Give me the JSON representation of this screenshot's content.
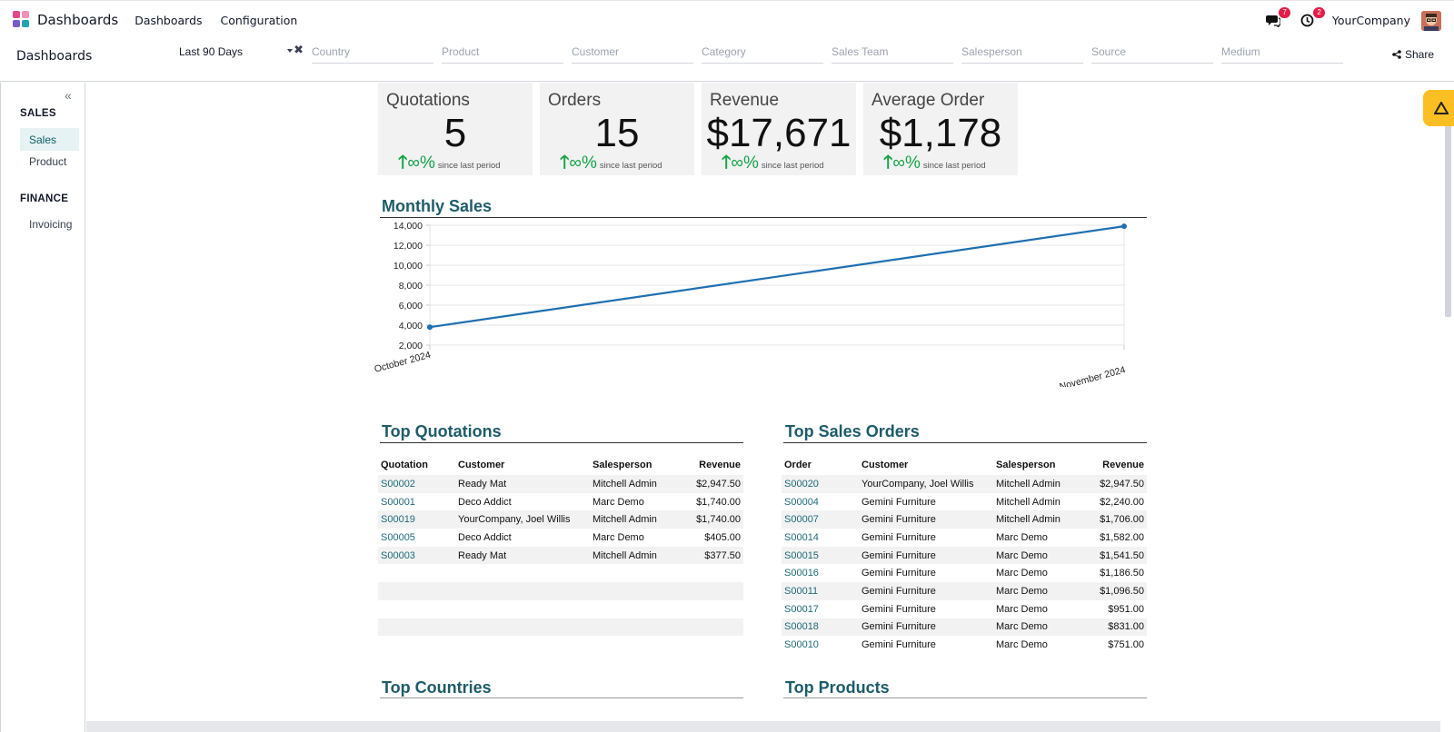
{
  "navbar": {
    "app_name": "Dashboards",
    "menus": [
      "Dashboards",
      "Configuration"
    ],
    "messages_badge": "7",
    "activities_badge": "2",
    "company": "YourCompany"
  },
  "control": {
    "breadcrumb": "Dashboards",
    "date_filter": "Last 90 Days",
    "filters": [
      "Country",
      "Product",
      "Customer",
      "Category",
      "Sales Team",
      "Salesperson",
      "Source",
      "Medium"
    ],
    "share_label": "Share"
  },
  "sidebar": {
    "sections": [
      {
        "title": "SALES",
        "items": [
          "Sales",
          "Product"
        ]
      },
      {
        "title": "FINANCE",
        "items": [
          "Invoicing"
        ]
      }
    ]
  },
  "kpis": [
    {
      "label": "Quotations",
      "value": "5",
      "trend": "∞%",
      "since": "since last period"
    },
    {
      "label": "Orders",
      "value": "15",
      "trend": "∞%",
      "since": "since last period"
    },
    {
      "label": "Revenue",
      "value": "$17,671",
      "trend": "∞%",
      "since": "since last period"
    },
    {
      "label": "Average Order",
      "value": "$1,178",
      "trend": "∞%",
      "since": "since last period"
    }
  ],
  "monthly_sales": {
    "title": "Monthly Sales"
  },
  "chart_data": {
    "type": "line",
    "x": [
      "October 2024",
      "November 2024"
    ],
    "series": [
      {
        "values": [
          3800,
          13900
        ]
      }
    ],
    "ylim": [
      2000,
      14000
    ],
    "yticks": [
      "14,000",
      "12,000",
      "10,000",
      "8,000",
      "6,000",
      "4,000",
      "2,000"
    ],
    "color": "#1f6fb0",
    "grid": true
  },
  "top_quotations": {
    "title": "Top Quotations",
    "headers": [
      "Quotation",
      "Customer",
      "Salesperson",
      "Revenue"
    ],
    "rows": [
      [
        "S00002",
        "Ready Mat",
        "Mitchell Admin",
        "$2,947.50"
      ],
      [
        "S00001",
        "Deco Addict",
        "Marc Demo",
        "$1,740.00"
      ],
      [
        "S00019",
        "YourCompany, Joel Willis",
        "Mitchell Admin",
        "$1,740.00"
      ],
      [
        "S00005",
        "Deco Addict",
        "Marc Demo",
        "$405.00"
      ],
      [
        "S00003",
        "Ready Mat",
        "Mitchell Admin",
        "$377.50"
      ]
    ]
  },
  "top_sales_orders": {
    "title": "Top Sales Orders",
    "headers": [
      "Order",
      "Customer",
      "Salesperson",
      "Revenue"
    ],
    "rows": [
      [
        "S00020",
        "YourCompany, Joel Willis",
        "Mitchell Admin",
        "$2,947.50"
      ],
      [
        "S00004",
        "Gemini Furniture",
        "Mitchell Admin",
        "$2,240.00"
      ],
      [
        "S00007",
        "Gemini Furniture",
        "Mitchell Admin",
        "$1,706.00"
      ],
      [
        "S00014",
        "Gemini Furniture",
        "Marc Demo",
        "$1,582.00"
      ],
      [
        "S00015",
        "Gemini Furniture",
        "Marc Demo",
        "$1,541.50"
      ],
      [
        "S00016",
        "Gemini Furniture",
        "Marc Demo",
        "$1,186.50"
      ],
      [
        "S00011",
        "Gemini Furniture",
        "Marc Demo",
        "$1,096.50"
      ],
      [
        "S00017",
        "Gemini Furniture",
        "Marc Demo",
        "$951.00"
      ],
      [
        "S00018",
        "Gemini Furniture",
        "Marc Demo",
        "$831.00"
      ],
      [
        "S00010",
        "Gemini Furniture",
        "Marc Demo",
        "$751.00"
      ]
    ]
  },
  "top_countries": {
    "title": "Top Countries"
  },
  "top_products": {
    "title": "Top Products"
  }
}
